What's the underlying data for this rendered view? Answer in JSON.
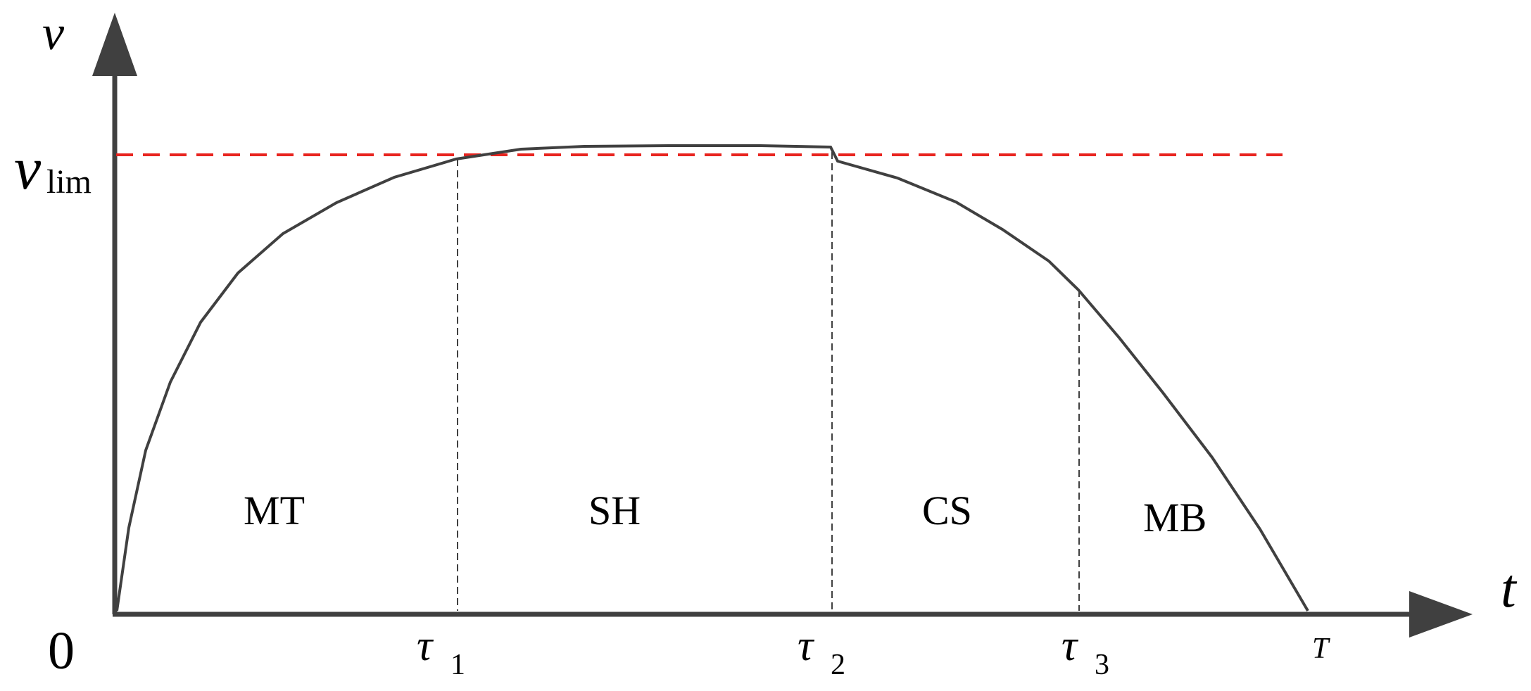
{
  "diagram": {
    "y_axis_label": "v",
    "x_axis_label": "t",
    "origin_label": "0",
    "limit_label": {
      "main": "v",
      "sub": "lim"
    },
    "ticks": [
      {
        "main": "τ",
        "sub": "1"
      },
      {
        "main": "τ",
        "sub": "2"
      },
      {
        "main": "τ",
        "sub": "3"
      },
      {
        "main": "T",
        "sub": ""
      }
    ],
    "phases": [
      "MT",
      "SH",
      "CS",
      "MB"
    ],
    "colors": {
      "axis": "#404040",
      "curve": "#404040",
      "limit_line": "#e8241f"
    }
  }
}
